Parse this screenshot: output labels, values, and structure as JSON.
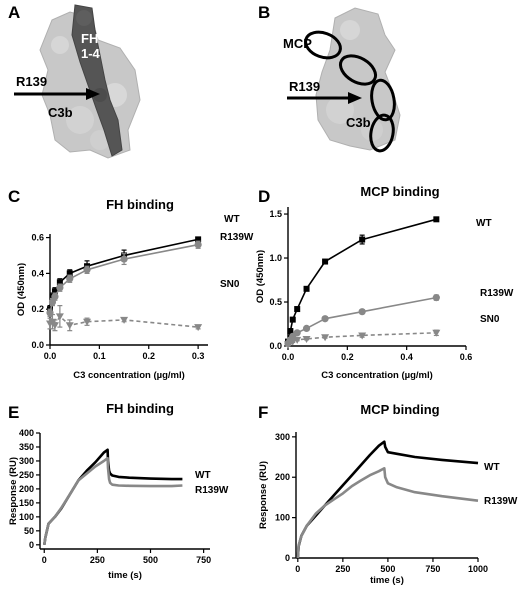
{
  "panels": {
    "A": {
      "letter": "A",
      "labels": {
        "fh": "FH",
        "fh_range": "1-4",
        "residue": "R139",
        "c3b": "C3b"
      }
    },
    "B": {
      "letter": "B",
      "labels": {
        "mcp": "MCP",
        "residue": "R139",
        "c3b": "C3b"
      }
    }
  },
  "colors": {
    "wt": "#000000",
    "mutant": "#888888",
    "sn0": "#888888",
    "structure_light": "#c8c8c8",
    "structure_dark": "#555555"
  },
  "chart_data": [
    {
      "id": "C",
      "letter": "C",
      "type": "line",
      "title": "FH binding",
      "xlabel": "C3 concentration (µg/ml)",
      "ylabel": "OD (450nm)",
      "xlim": [
        0,
        0.32
      ],
      "ylim": [
        0,
        0.62
      ],
      "xticks": [
        0.0,
        0.1,
        0.2,
        0.3
      ],
      "xtick_labels": [
        "0.0",
        "0.1",
        "0.2",
        "0.3"
      ],
      "yticks": [
        0.0,
        0.2,
        0.4,
        0.6
      ],
      "ytick_labels": [
        "0.0",
        "0.2",
        "0.4",
        "0.6"
      ],
      "series": [
        {
          "name": "WT",
          "color": "#000000",
          "dashed": false,
          "marker": "square",
          "x": [
            0.0,
            0.005,
            0.01,
            0.02,
            0.04,
            0.075,
            0.15,
            0.3
          ],
          "y": [
            0.2,
            0.27,
            0.3,
            0.35,
            0.4,
            0.44,
            0.5,
            0.59
          ],
          "err": [
            0.02,
            0.02,
            0.02,
            0.02,
            0.02,
            0.03,
            0.03,
            0.01
          ]
        },
        {
          "name": "R139W",
          "color": "#888888",
          "dashed": false,
          "marker": "circle",
          "x": [
            0.0,
            0.005,
            0.01,
            0.02,
            0.04,
            0.075,
            0.15,
            0.3
          ],
          "y": [
            0.18,
            0.24,
            0.27,
            0.32,
            0.37,
            0.42,
            0.48,
            0.56
          ],
          "err": [
            0.02,
            0.02,
            0.02,
            0.02,
            0.02,
            0.02,
            0.03,
            0.02
          ]
        },
        {
          "name": "SN0",
          "color": "#888888",
          "dashed": true,
          "marker": "triangle-down",
          "x": [
            0.0,
            0.005,
            0.01,
            0.02,
            0.04,
            0.075,
            0.15,
            0.3
          ],
          "y": [
            0.12,
            0.13,
            0.11,
            0.16,
            0.11,
            0.13,
            0.14,
            0.1
          ],
          "err": [
            0.03,
            0.04,
            0.03,
            0.06,
            0.03,
            0.02,
            0.01,
            0.01
          ]
        }
      ]
    },
    {
      "id": "D",
      "letter": "D",
      "type": "line",
      "title": "MCP binding",
      "xlabel": "C3 concentration (µg/ml)",
      "ylabel": "OD (450nm)",
      "xlim": [
        0,
        0.6
      ],
      "ylim": [
        0,
        1.58
      ],
      "xticks": [
        0.0,
        0.2,
        0.4,
        0.6
      ],
      "xtick_labels": [
        "0.0",
        "0.2",
        "0.4",
        "0.6"
      ],
      "yticks": [
        0.0,
        0.5,
        1.0,
        1.5
      ],
      "ytick_labels": [
        "0.0",
        "0.5",
        "1.0",
        "1.5"
      ],
      "series": [
        {
          "name": "WT",
          "color": "#000000",
          "dashed": false,
          "marker": "square",
          "x": [
            0.0,
            0.008,
            0.016,
            0.031,
            0.0625,
            0.125,
            0.25,
            0.5
          ],
          "y": [
            0.05,
            0.17,
            0.3,
            0.42,
            0.65,
            0.96,
            1.21,
            1.44
          ],
          "err": [
            0.01,
            0.01,
            0.01,
            0.02,
            0.02,
            0.02,
            0.05,
            0.02
          ]
        },
        {
          "name": "R139W",
          "color": "#888888",
          "dashed": false,
          "marker": "circle",
          "x": [
            0.0,
            0.008,
            0.016,
            0.031,
            0.0625,
            0.125,
            0.25,
            0.5
          ],
          "y": [
            0.03,
            0.07,
            0.11,
            0.15,
            0.2,
            0.31,
            0.39,
            0.55
          ],
          "err": [
            0.01,
            0.01,
            0.01,
            0.01,
            0.01,
            0.01,
            0.02,
            0.03
          ]
        },
        {
          "name": "SN0",
          "color": "#888888",
          "dashed": true,
          "marker": "triangle-down",
          "x": [
            0.0,
            0.008,
            0.016,
            0.031,
            0.0625,
            0.125,
            0.25,
            0.5
          ],
          "y": [
            0.02,
            0.04,
            0.05,
            0.07,
            0.08,
            0.1,
            0.12,
            0.15
          ],
          "err": [
            0.01,
            0.01,
            0.01,
            0.01,
            0.01,
            0.01,
            0.02,
            0.03
          ]
        }
      ]
    },
    {
      "id": "E",
      "letter": "E",
      "type": "line",
      "title": "FH binding",
      "xlabel": "time (s)",
      "ylabel": "Response (RU)",
      "xlim": [
        -20,
        780
      ],
      "ylim": [
        -15,
        400
      ],
      "xticks": [
        0,
        250,
        500,
        750
      ],
      "xtick_labels": [
        "0",
        "250",
        "500",
        "750"
      ],
      "yticks": [
        0,
        50,
        100,
        150,
        200,
        250,
        300,
        350,
        400
      ],
      "ytick_labels": [
        "0",
        "50",
        "100",
        "150",
        "200",
        "250",
        "300",
        "350",
        "400"
      ],
      "series": [
        {
          "name": "WT",
          "color": "#000000",
          "dashed": false,
          "x": [
            0,
            5,
            20,
            50,
            80,
            120,
            160,
            200,
            240,
            280,
            298,
            300,
            305,
            310,
            320,
            350,
            400,
            500,
            600,
            650
          ],
          "y": [
            0,
            25,
            75,
            100,
            130,
            180,
            230,
            265,
            295,
            330,
            340,
            300,
            265,
            255,
            248,
            243,
            240,
            237,
            235,
            235
          ]
        },
        {
          "name": "R139W",
          "color": "#888888",
          "dashed": false,
          "x": [
            0,
            5,
            20,
            50,
            80,
            120,
            160,
            200,
            240,
            280,
            298,
            300,
            305,
            310,
            320,
            350,
            400,
            500,
            600,
            650
          ],
          "y": [
            0,
            25,
            75,
            100,
            132,
            180,
            230,
            255,
            280,
            300,
            310,
            275,
            235,
            222,
            215,
            212,
            211,
            210,
            210,
            212
          ]
        }
      ]
    },
    {
      "id": "F",
      "letter": "F",
      "type": "line",
      "title": "MCP binding",
      "xlabel": "time (s)",
      "ylabel": "Response (RU)",
      "xlim": [
        -10,
        1000
      ],
      "ylim": [
        0,
        312
      ],
      "xticks": [
        0,
        250,
        500,
        750,
        1000
      ],
      "xtick_labels": [
        "0",
        "250",
        "500",
        "750",
        "1000"
      ],
      "yticks": [
        0,
        100,
        200,
        300
      ],
      "ytick_labels": [
        "0",
        "100",
        "200",
        "300"
      ],
      "series": [
        {
          "name": "WT",
          "color": "#000000",
          "dashed": false,
          "x": [
            0,
            5,
            20,
            50,
            100,
            150,
            200,
            250,
            300,
            350,
            400,
            450,
            480,
            485,
            500,
            550,
            650,
            800,
            1000
          ],
          "y": [
            0,
            30,
            55,
            80,
            105,
            130,
            155,
            180,
            205,
            230,
            255,
            278,
            288,
            275,
            262,
            258,
            250,
            243,
            235
          ]
        },
        {
          "name": "R139W",
          "color": "#888888",
          "dashed": false,
          "x": [
            0,
            5,
            20,
            50,
            100,
            150,
            200,
            250,
            300,
            350,
            400,
            450,
            480,
            485,
            500,
            550,
            650,
            800,
            1000
          ],
          "y": [
            0,
            32,
            55,
            80,
            110,
            130,
            145,
            160,
            178,
            192,
            205,
            215,
            222,
            200,
            185,
            175,
            163,
            153,
            142
          ]
        }
      ]
    }
  ]
}
